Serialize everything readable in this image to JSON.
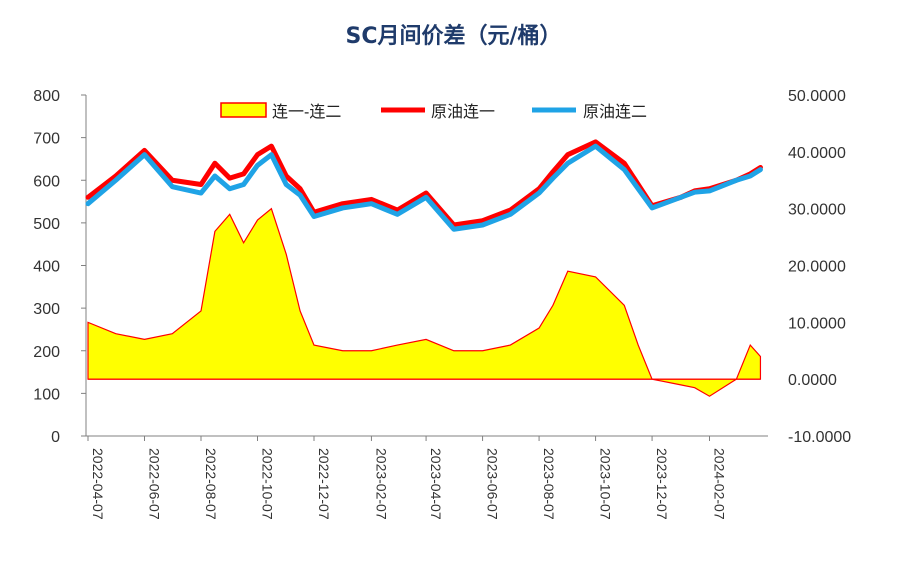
{
  "chart_data": {
    "type": "line",
    "title": "SC月间价差（元/桶）",
    "xlabel": "",
    "ylabel": "",
    "y2label": "",
    "ylim": [
      0,
      800
    ],
    "y_ticks": [
      0,
      100,
      200,
      300,
      400,
      500,
      600,
      700,
      800
    ],
    "y2lim": [
      -10,
      50
    ],
    "y2_ticks": [
      "-10.0000",
      "0.0000",
      "10.0000",
      "20.0000",
      "30.0000",
      "40.0000",
      "50.0000"
    ],
    "x_ticks": [
      "2022-04-07",
      "2022-06-07",
      "2022-08-07",
      "2022-10-07",
      "2022-12-07",
      "2023-02-07",
      "2023-04-07",
      "2023-06-07",
      "2023-08-07",
      "2023-10-07",
      "2023-12-07",
      "2024-02-07"
    ],
    "legend_position": "top",
    "grid": false,
    "series": [
      {
        "name": "连一-连二",
        "axis": "right",
        "style": "area",
        "color": "#ffff00",
        "edge_color": "#ff0000",
        "x": [
          "2022-04-07",
          "2022-05-07",
          "2022-06-07",
          "2022-07-07",
          "2022-08-07",
          "2022-08-22",
          "2022-09-07",
          "2022-09-22",
          "2022-10-07",
          "2022-10-22",
          "2022-11-07",
          "2022-11-22",
          "2022-12-07",
          "2023-01-07",
          "2023-02-07",
          "2023-03-07",
          "2023-04-07",
          "2023-05-07",
          "2023-06-07",
          "2023-07-07",
          "2023-08-07",
          "2023-08-22",
          "2023-09-07",
          "2023-10-07",
          "2023-11-07",
          "2023-11-22",
          "2023-12-07",
          "2024-01-07",
          "2024-01-22",
          "2024-02-07",
          "2024-03-07",
          "2024-03-22",
          "2024-04-02"
        ],
        "values": [
          10,
          8,
          7,
          8,
          12,
          26,
          29,
          24,
          28,
          30,
          22,
          12,
          6,
          5,
          5,
          6,
          7,
          5,
          5,
          6,
          9,
          13,
          19,
          18,
          13,
          6,
          0,
          -1,
          -1.5,
          -3,
          0,
          6,
          4
        ]
      },
      {
        "name": "原油连一",
        "axis": "left",
        "style": "line",
        "color": "#ff0000",
        "x": [
          "2022-04-07",
          "2022-05-07",
          "2022-06-07",
          "2022-07-07",
          "2022-08-07",
          "2022-08-22",
          "2022-09-07",
          "2022-09-22",
          "2022-10-07",
          "2022-10-22",
          "2022-11-07",
          "2022-11-22",
          "2022-12-07",
          "2023-01-07",
          "2023-02-07",
          "2023-03-07",
          "2023-04-07",
          "2023-05-07",
          "2023-06-07",
          "2023-07-07",
          "2023-08-07",
          "2023-08-22",
          "2023-09-07",
          "2023-10-07",
          "2023-11-07",
          "2023-11-22",
          "2023-12-07",
          "2024-01-07",
          "2024-01-22",
          "2024-02-07",
          "2024-03-07",
          "2024-03-22",
          "2024-04-02"
        ],
        "values": [
          560,
          610,
          670,
          600,
          590,
          640,
          605,
          615,
          660,
          680,
          610,
          580,
          525,
          545,
          555,
          530,
          570,
          495,
          505,
          530,
          580,
          620,
          660,
          690,
          640,
          590,
          540,
          560,
          575,
          580,
          600,
          615,
          630
        ]
      },
      {
        "name": "原油连二",
        "axis": "left",
        "style": "line",
        "color": "#1fa3e6",
        "x": [
          "2022-04-07",
          "2022-05-07",
          "2022-06-07",
          "2022-07-07",
          "2022-08-07",
          "2022-08-22",
          "2022-09-07",
          "2022-09-22",
          "2022-10-07",
          "2022-10-22",
          "2022-11-07",
          "2022-11-22",
          "2022-12-07",
          "2023-01-07",
          "2023-02-07",
          "2023-03-07",
          "2023-04-07",
          "2023-05-07",
          "2023-06-07",
          "2023-07-07",
          "2023-08-07",
          "2023-08-22",
          "2023-09-07",
          "2023-10-07",
          "2023-11-07",
          "2023-11-22",
          "2023-12-07",
          "2024-01-07",
          "2024-01-22",
          "2024-02-07",
          "2024-03-07",
          "2024-03-22",
          "2024-04-02"
        ],
        "values": [
          545,
          600,
          660,
          585,
          570,
          610,
          580,
          590,
          635,
          660,
          590,
          565,
          515,
          535,
          545,
          520,
          560,
          485,
          495,
          520,
          570,
          605,
          640,
          680,
          625,
          580,
          535,
          560,
          572,
          575,
          600,
          610,
          625
        ]
      }
    ]
  }
}
